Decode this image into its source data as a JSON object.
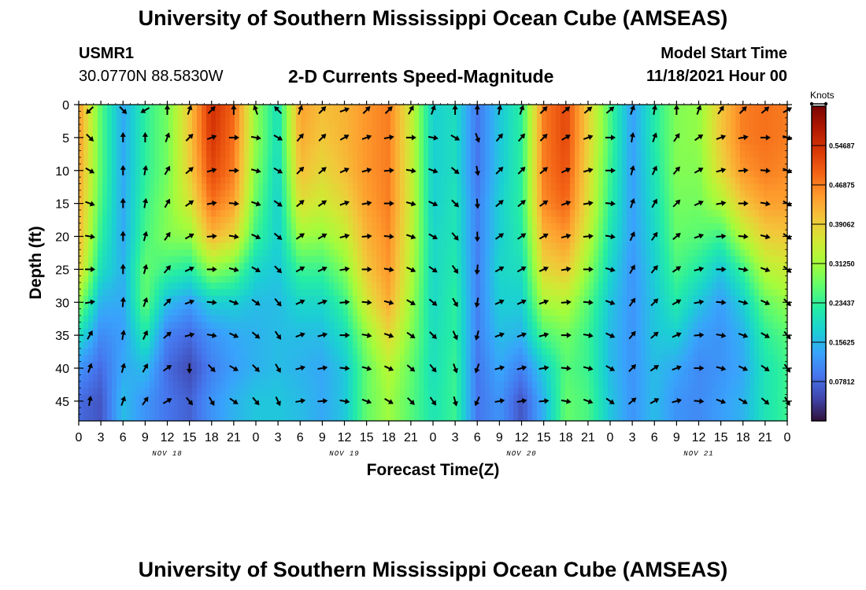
{
  "header": {
    "title": "University of Southern Mississippi Ocean Cube (AMSEAS)",
    "station": "USMR1",
    "coords": "30.0770N  88.5830W",
    "subtitle": "2-D Currents Speed-Magnitude",
    "model_start_label": "Model Start Time",
    "model_start_value": "11/18/2021 Hour 00"
  },
  "footer": {
    "title": "University of Southern Mississippi Ocean Cube (AMSEAS)"
  },
  "chart_data": {
    "type": "heatmap",
    "title": "2-D Currents Speed-Magnitude",
    "xlabel": "Forecast Time(Z)",
    "ylabel": "Depth (ft)",
    "x_ticks": [
      "0",
      "3",
      "6",
      "9",
      "12",
      "15",
      "18",
      "21",
      "0",
      "3",
      "6",
      "9",
      "12",
      "15",
      "18",
      "21",
      "0",
      "3",
      "6",
      "9",
      "12",
      "15",
      "18",
      "21",
      "0",
      "3",
      "6",
      "9",
      "12",
      "15",
      "18",
      "21",
      "0"
    ],
    "date_labels": [
      {
        "label": "NOV 18",
        "hour": 12
      },
      {
        "label": "NOV 19",
        "hour": 36
      },
      {
        "label": "NOV 20",
        "hour": 60
      },
      {
        "label": "NOV 21",
        "hour": 84
      }
    ],
    "xlim_hours": [
      0,
      96
    ],
    "y_ticks": [
      0,
      5,
      10,
      15,
      20,
      25,
      30,
      35,
      40,
      45
    ],
    "ylim_ft": [
      0,
      48
    ],
    "colorbar": {
      "label": "Knots",
      "range": [
        0,
        0.625
      ],
      "ticks": [
        "0.07812",
        "0.15625",
        "0.23437",
        "0.31250",
        "0.39062",
        "0.46875",
        "0.54687"
      ],
      "colors": [
        "#30123b",
        "#4145ab",
        "#4675ed",
        "#39a2fc",
        "#1bcfd4",
        "#24eca6",
        "#61fc6c",
        "#a4fc3b",
        "#d1e834",
        "#f3c63a",
        "#fe9b2d",
        "#f36315",
        "#d93806",
        "#b11901",
        "#7a0402"
      ]
    },
    "columns": [
      {
        "hour": 0,
        "speeds": [
          0.45,
          0.45,
          0.44,
          0.43,
          0.42,
          0.39,
          0.3,
          0.2,
          0.12,
          0.08
        ]
      },
      {
        "hour": 3,
        "speeds": [
          0.26,
          0.26,
          0.26,
          0.25,
          0.23,
          0.2,
          0.15,
          0.11,
          0.08,
          0.06
        ]
      },
      {
        "hour": 6,
        "speeds": [
          0.14,
          0.14,
          0.14,
          0.14,
          0.14,
          0.15,
          0.14,
          0.13,
          0.14,
          0.16
        ]
      },
      {
        "hour": 9,
        "speeds": [
          0.23,
          0.23,
          0.23,
          0.24,
          0.25,
          0.27,
          0.27,
          0.22,
          0.16,
          0.12
        ]
      },
      {
        "hour": 12,
        "speeds": [
          0.28,
          0.28,
          0.28,
          0.29,
          0.29,
          0.24,
          0.16,
          0.1,
          0.08,
          0.09
        ]
      },
      {
        "hour": 15,
        "speeds": [
          0.4,
          0.4,
          0.39,
          0.36,
          0.3,
          0.22,
          0.13,
          0.08,
          0.05,
          0.07
        ]
      },
      {
        "hour": 18,
        "speeds": [
          0.55,
          0.54,
          0.52,
          0.48,
          0.42,
          0.3,
          0.18,
          0.12,
          0.1,
          0.12
        ]
      },
      {
        "hour": 21,
        "speeds": [
          0.49,
          0.48,
          0.47,
          0.44,
          0.38,
          0.27,
          0.18,
          0.14,
          0.13,
          0.15
        ]
      },
      {
        "hour": 24,
        "speeds": [
          0.3,
          0.3,
          0.29,
          0.27,
          0.24,
          0.19,
          0.16,
          0.15,
          0.15,
          0.17
        ]
      },
      {
        "hour": 27,
        "speeds": [
          0.2,
          0.2,
          0.19,
          0.18,
          0.18,
          0.17,
          0.16,
          0.16,
          0.16,
          0.17
        ]
      },
      {
        "hour": 30,
        "speeds": [
          0.44,
          0.43,
          0.41,
          0.37,
          0.31,
          0.24,
          0.19,
          0.16,
          0.15,
          0.16
        ]
      },
      {
        "hour": 33,
        "speeds": [
          0.41,
          0.4,
          0.38,
          0.35,
          0.3,
          0.24,
          0.19,
          0.16,
          0.14,
          0.14
        ]
      },
      {
        "hour": 36,
        "speeds": [
          0.42,
          0.42,
          0.41,
          0.38,
          0.34,
          0.29,
          0.24,
          0.2,
          0.17,
          0.17
        ]
      },
      {
        "hour": 39,
        "speeds": [
          0.45,
          0.45,
          0.45,
          0.44,
          0.42,
          0.4,
          0.36,
          0.3,
          0.27,
          0.27
        ]
      },
      {
        "hour": 42,
        "speeds": [
          0.47,
          0.47,
          0.47,
          0.47,
          0.46,
          0.45,
          0.43,
          0.38,
          0.33,
          0.31
        ]
      },
      {
        "hour": 45,
        "speeds": [
          0.35,
          0.35,
          0.35,
          0.35,
          0.34,
          0.33,
          0.31,
          0.29,
          0.27,
          0.26
        ]
      },
      {
        "hour": 48,
        "speeds": [
          0.18,
          0.18,
          0.18,
          0.18,
          0.19,
          0.19,
          0.19,
          0.2,
          0.2,
          0.21
        ]
      },
      {
        "hour": 51,
        "speeds": [
          0.2,
          0.2,
          0.2,
          0.21,
          0.21,
          0.22,
          0.23,
          0.23,
          0.24,
          0.24
        ]
      },
      {
        "hour": 54,
        "speeds": [
          0.09,
          0.09,
          0.09,
          0.1,
          0.1,
          0.1,
          0.1,
          0.1,
          0.09,
          0.09
        ]
      },
      {
        "hour": 57,
        "speeds": [
          0.17,
          0.17,
          0.17,
          0.18,
          0.18,
          0.19,
          0.18,
          0.16,
          0.14,
          0.12
        ]
      },
      {
        "hour": 60,
        "speeds": [
          0.23,
          0.23,
          0.23,
          0.23,
          0.22,
          0.2,
          0.18,
          0.15,
          0.1,
          0.06
        ]
      },
      {
        "hour": 63,
        "speeds": [
          0.47,
          0.47,
          0.47,
          0.46,
          0.42,
          0.38,
          0.32,
          0.25,
          0.18,
          0.15
        ]
      },
      {
        "hour": 66,
        "speeds": [
          0.52,
          0.52,
          0.51,
          0.49,
          0.45,
          0.4,
          0.33,
          0.28,
          0.26,
          0.27
        ]
      },
      {
        "hour": 69,
        "speeds": [
          0.39,
          0.39,
          0.38,
          0.37,
          0.34,
          0.3,
          0.26,
          0.24,
          0.24,
          0.25
        ]
      },
      {
        "hour": 72,
        "speeds": [
          0.25,
          0.25,
          0.24,
          0.23,
          0.21,
          0.19,
          0.17,
          0.16,
          0.16,
          0.17
        ]
      },
      {
        "hour": 75,
        "speeds": [
          0.13,
          0.13,
          0.13,
          0.13,
          0.13,
          0.12,
          0.12,
          0.12,
          0.12,
          0.12
        ]
      },
      {
        "hour": 78,
        "speeds": [
          0.22,
          0.22,
          0.21,
          0.2,
          0.19,
          0.18,
          0.17,
          0.17,
          0.16,
          0.16
        ]
      },
      {
        "hour": 81,
        "speeds": [
          0.29,
          0.29,
          0.29,
          0.28,
          0.27,
          0.25,
          0.22,
          0.18,
          0.14,
          0.12
        ]
      },
      {
        "hour": 84,
        "speeds": [
          0.3,
          0.3,
          0.29,
          0.28,
          0.26,
          0.22,
          0.17,
          0.13,
          0.11,
          0.11
        ]
      },
      {
        "hour": 87,
        "speeds": [
          0.4,
          0.4,
          0.38,
          0.32,
          0.24,
          0.17,
          0.13,
          0.12,
          0.12,
          0.13
        ]
      },
      {
        "hour": 90,
        "speeds": [
          0.47,
          0.47,
          0.45,
          0.4,
          0.33,
          0.24,
          0.18,
          0.15,
          0.14,
          0.15
        ]
      },
      {
        "hour": 93,
        "speeds": [
          0.48,
          0.48,
          0.47,
          0.44,
          0.39,
          0.33,
          0.27,
          0.23,
          0.21,
          0.21
        ]
      },
      {
        "hour": 96,
        "speeds": [
          0.47,
          0.47,
          0.46,
          0.44,
          0.4,
          0.35,
          0.3,
          0.26,
          0.24,
          0.24
        ]
      }
    ],
    "vector_depths_ft": [
      0,
      5,
      10,
      15,
      20,
      25,
      30,
      35,
      40,
      45
    ],
    "vector_hours": [
      1.5,
      6,
      9,
      12,
      15,
      18,
      21,
      24,
      27,
      30,
      33,
      36,
      39,
      42,
      45,
      48,
      51,
      54,
      57,
      60,
      63,
      66,
      69,
      72,
      75,
      78,
      81,
      84,
      87,
      90,
      93,
      96
    ],
    "vector_directions_deg": [
      [
        45,
        315,
        60,
        180,
        200,
        225,
        180,
        160,
        135,
        200,
        225,
        250,
        225,
        225,
        210,
        200,
        180,
        180,
        190,
        200,
        225,
        230,
        230,
        230,
        200,
        190,
        180,
        200,
        215,
        225,
        230,
        240
      ],
      [
        315,
        180,
        180,
        200,
        225,
        250,
        270,
        280,
        300,
        220,
        225,
        240,
        250,
        260,
        270,
        280,
        300,
        340,
        220,
        220,
        225,
        240,
        250,
        270,
        190,
        200,
        215,
        235,
        250,
        260,
        270,
        290
      ],
      [
        300,
        180,
        190,
        210,
        230,
        255,
        270,
        285,
        300,
        225,
        230,
        245,
        255,
        265,
        280,
        290,
        310,
        350,
        225,
        225,
        230,
        245,
        255,
        270,
        195,
        205,
        220,
        240,
        255,
        265,
        275,
        295
      ],
      [
        290,
        180,
        190,
        210,
        235,
        260,
        275,
        290,
        305,
        230,
        235,
        250,
        260,
        270,
        285,
        295,
        315,
        355,
        230,
        230,
        235,
        250,
        260,
        275,
        200,
        210,
        225,
        245,
        260,
        270,
        280,
        300
      ],
      [
        280,
        180,
        195,
        215,
        240,
        265,
        280,
        295,
        310,
        235,
        240,
        255,
        265,
        275,
        290,
        300,
        320,
        0,
        235,
        235,
        240,
        255,
        265,
        280,
        205,
        215,
        230,
        250,
        265,
        275,
        285,
        305
      ],
      [
        270,
        180,
        195,
        220,
        245,
        270,
        285,
        300,
        315,
        240,
        245,
        260,
        270,
        280,
        295,
        305,
        325,
        5,
        240,
        240,
        245,
        260,
        270,
        285,
        210,
        220,
        235,
        255,
        270,
        280,
        290,
        310
      ],
      [
        260,
        185,
        200,
        225,
        250,
        275,
        290,
        305,
        320,
        245,
        250,
        265,
        275,
        285,
        300,
        310,
        330,
        10,
        245,
        245,
        250,
        265,
        275,
        290,
        215,
        225,
        240,
        260,
        275,
        285,
        295,
        315
      ],
      [
        210,
        190,
        205,
        230,
        255,
        280,
        295,
        310,
        325,
        250,
        255,
        270,
        280,
        290,
        305,
        315,
        335,
        15,
        250,
        250,
        255,
        270,
        280,
        295,
        220,
        230,
        245,
        265,
        280,
        290,
        300,
        320
      ],
      [
        200,
        195,
        210,
        235,
        0,
        315,
        300,
        315,
        330,
        255,
        260,
        275,
        285,
        295,
        310,
        320,
        340,
        20,
        255,
        255,
        260,
        275,
        285,
        300,
        225,
        235,
        250,
        270,
        285,
        295,
        305,
        325
      ],
      [
        190,
        200,
        215,
        240,
        320,
        330,
        305,
        320,
        335,
        260,
        265,
        280,
        290,
        300,
        315,
        325,
        345,
        25,
        260,
        260,
        265,
        280,
        290,
        305,
        230,
        240,
        255,
        275,
        290,
        300,
        310,
        330
      ]
    ]
  }
}
